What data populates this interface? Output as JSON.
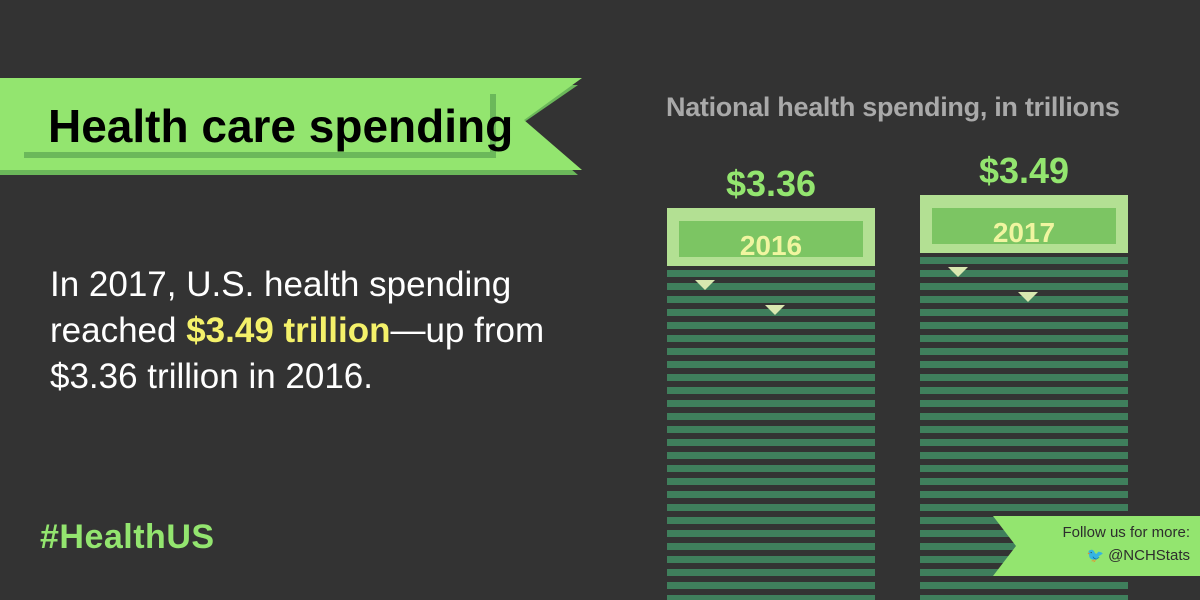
{
  "banner": {
    "title": "Health care spending"
  },
  "statement": {
    "part1": "In 2017, U.S. health spending reached ",
    "highlight": "$3.49 trillion",
    "part2": "—up from $3.36 trillion in 2016."
  },
  "hashtag": "#HealthUS",
  "follow": {
    "line1": "Follow us for more:",
    "handle": "@NCHStats",
    "icon": "twitter-bird-icon"
  },
  "colors": {
    "background": "#333333",
    "accent_green": "#93e56f",
    "bar_green": "#3f7f5c",
    "highlight_yellow": "#f4f16a",
    "label_green": "#f0f5a0"
  },
  "chart_data": {
    "type": "bar",
    "title": "National health spending, in trillions",
    "categories": [
      "2016",
      "2017"
    ],
    "values": [
      3.36,
      3.49
    ],
    "value_labels": [
      "$3.36",
      "$3.49"
    ],
    "xlabel": "",
    "ylabel": "",
    "grid": false,
    "legend": "none"
  }
}
